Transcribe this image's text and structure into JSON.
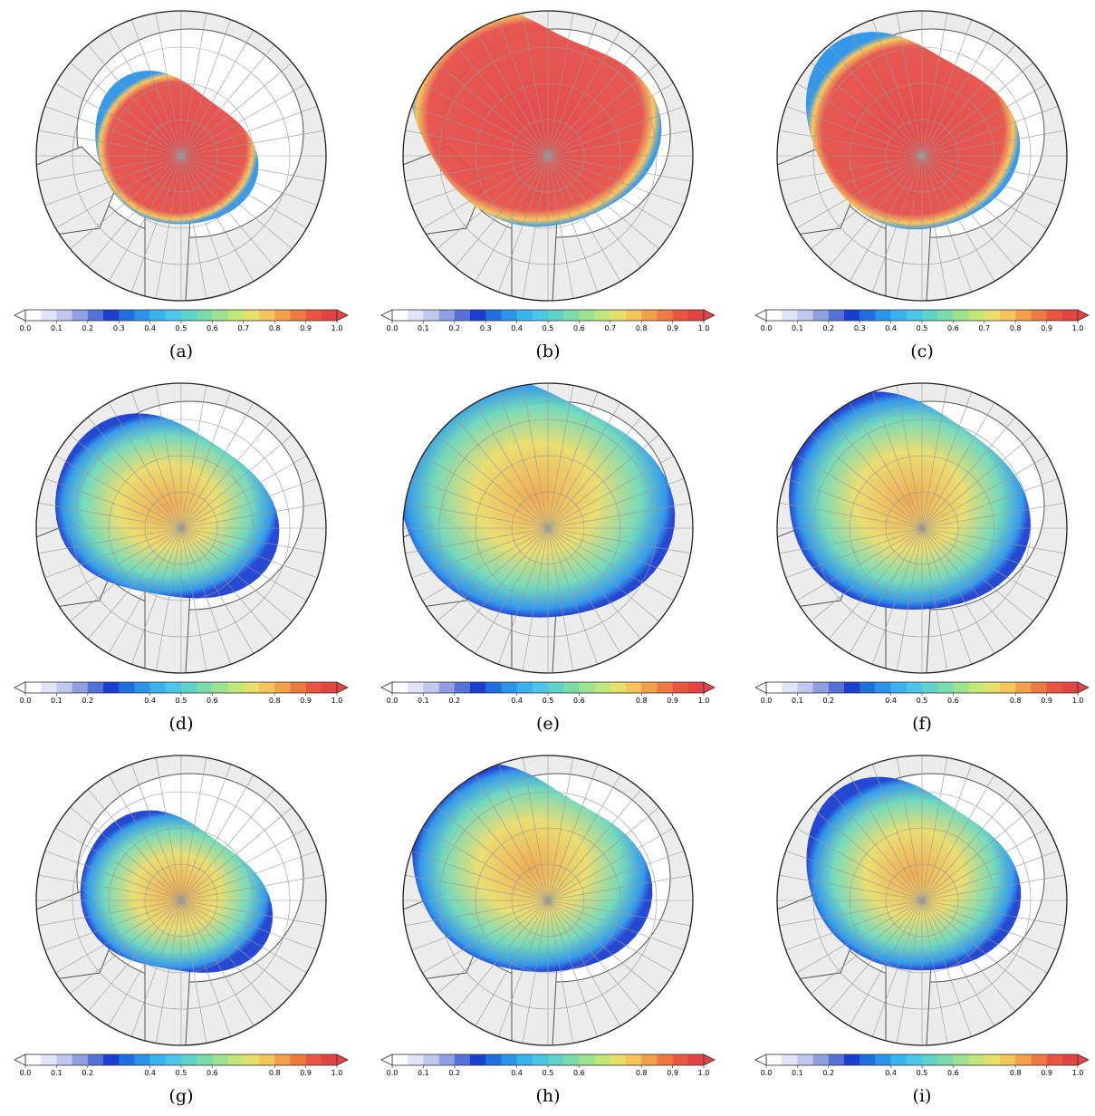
{
  "panels": [
    {
      "label": "(a)",
      "ticks": [
        {
          "value": 0,
          "label": "0.0"
        },
        0.1,
        0.2,
        0.3,
        0.4,
        0.5,
        0.6,
        0.7,
        0.8,
        0.9,
        {
          "value": 1,
          "label": "1.0"
        }
      ]
    },
    {
      "label": "(b)",
      "ticks": [
        {
          "value": 0,
          "label": "0.0"
        },
        0.1,
        0.2,
        0.3,
        0.4,
        0.5,
        0.6,
        0.7,
        0.8,
        0.9,
        {
          "value": 1,
          "label": "1.0"
        }
      ]
    },
    {
      "label": "(c)",
      "ticks": [
        {
          "value": 0,
          "label": "0.0"
        },
        0.1,
        0.2,
        0.3,
        0.4,
        0.5,
        0.6,
        0.7,
        0.8,
        0.9,
        {
          "value": 1,
          "label": "1.0"
        }
      ]
    },
    {
      "label": "(d)",
      "ticks": [
        {
          "value": 0,
          "label": "0.0"
        },
        0.1,
        0.2,
        0.4,
        0.5,
        0.6,
        0.8,
        0.9,
        {
          "value": 1,
          "label": "1.0"
        }
      ]
    },
    {
      "label": "(e)",
      "ticks": [
        {
          "value": 0,
          "label": "0.0"
        },
        0.1,
        0.2,
        0.4,
        0.5,
        0.6,
        0.8,
        0.9,
        {
          "value": 1,
          "label": "1.0"
        }
      ]
    },
    {
      "label": "(f)",
      "ticks": [
        {
          "value": 0,
          "label": "0.0"
        },
        0.1,
        0.2,
        0.4,
        0.5,
        0.6,
        0.8,
        0.9,
        {
          "value": 1,
          "label": "1.0"
        }
      ]
    },
    {
      "label": "(g)",
      "ticks": [
        {
          "value": 0,
          "label": "0.0"
        },
        0.1,
        0.2,
        0.4,
        0.5,
        0.6,
        0.8,
        0.9,
        {
          "value": 1,
          "label": "1.0"
        }
      ]
    },
    {
      "label": "(h)",
      "ticks": [
        {
          "value": 0,
          "label": "0.0"
        },
        0.1,
        0.2,
        0.4,
        0.5,
        0.6,
        0.8,
        0.9,
        {
          "value": 1,
          "label": "1.0"
        }
      ]
    },
    {
      "label": "(i)",
      "ticks": [
        {
          "value": 0,
          "label": "0.0"
        },
        0.1,
        0.2,
        0.4,
        0.5,
        0.6,
        0.8,
        0.9,
        {
          "value": 1,
          "label": "1.0"
        }
      ]
    }
  ],
  "colorbar_colors": [
    "#ffffff",
    "#e0e4f6",
    "#c0c8ee",
    "#8f9fe0",
    "#5570d6",
    "#1a3fd0",
    "#1f6fe0",
    "#2b94ea",
    "#39b3ee",
    "#4cc6e8",
    "#5fd3c9",
    "#7bdcab",
    "#9de38f",
    "#c2e779",
    "#e6e06a",
    "#f5c55a",
    "#f3a04b",
    "#ee7a41",
    "#e95540",
    "#e34343"
  ]
}
